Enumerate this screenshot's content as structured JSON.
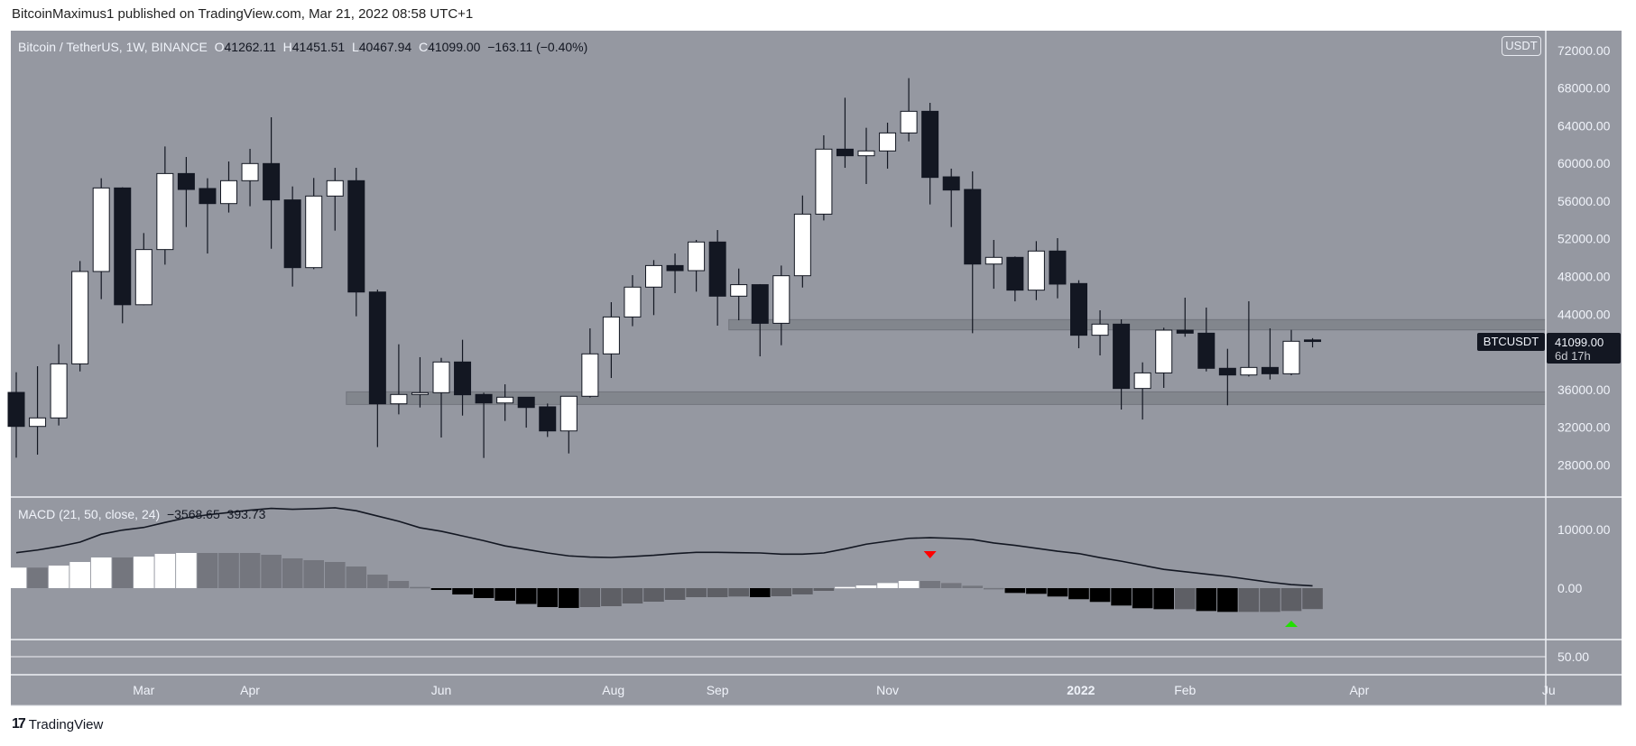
{
  "header": {
    "published": "BitcoinMaximus1 published on TradingView.com, Mar 21, 2022 08:58 UTC+1"
  },
  "legend": {
    "symbol": "Bitcoin / TetherUS, 1W, BINANCE",
    "o_label": "O",
    "o": "41262.11",
    "h_label": "H",
    "h": "41451.51",
    "l_label": "L",
    "l": "40467.94",
    "c_label": "C",
    "c": "41099.00",
    "change": "−163.11 (−0.40%)"
  },
  "price_axis": {
    "currency": "USDT",
    "ticks": [
      {
        "value": 72000,
        "label": "72000.00"
      },
      {
        "value": 68000,
        "label": "68000.00"
      },
      {
        "value": 64000,
        "label": "64000.00"
      },
      {
        "value": 60000,
        "label": "60000.00"
      },
      {
        "value": 56000,
        "label": "56000.00"
      },
      {
        "value": 52000,
        "label": "52000.00"
      },
      {
        "value": 48000,
        "label": "48000.00"
      },
      {
        "value": 44000,
        "label": "44000.00"
      },
      {
        "value": 36000,
        "label": "36000.00"
      },
      {
        "value": 32000,
        "label": "32000.00"
      },
      {
        "value": 28000,
        "label": "28000.00"
      }
    ]
  },
  "last_price": {
    "symbol": "BTCUSDT",
    "price": "41099.00",
    "countdown": "6d 17h"
  },
  "macd": {
    "label": "MACD (21, 50, close, 24)",
    "hist_value": "−3568.65",
    "line_value": "393.73",
    "axis_ticks": [
      {
        "value": 10000,
        "label": "10000.00"
      },
      {
        "value": 0,
        "label": "0.00"
      }
    ]
  },
  "lower_pane": {
    "axis_label": "50.00"
  },
  "time_axis": [
    {
      "label": "Mar",
      "bar": 6.0,
      "bold": false
    },
    {
      "label": "Apr",
      "bar": 11.0,
      "bold": false
    },
    {
      "label": "Jun",
      "bar": 20.0,
      "bold": false
    },
    {
      "label": "Aug",
      "bar": 28.1,
      "bold": false
    },
    {
      "label": "Sep",
      "bar": 33.0,
      "bold": false
    },
    {
      "label": "Nov",
      "bar": 41.0,
      "bold": false
    },
    {
      "label": "2022",
      "bar": 50.1,
      "bold": true
    },
    {
      "label": "Feb",
      "bar": 55.0,
      "bold": false
    },
    {
      "label": "Apr",
      "bar": 63.2,
      "bold": false
    },
    {
      "label": "Ju",
      "bar": 71.8,
      "bold": false
    }
  ],
  "footer": {
    "brand": "TradingView",
    "logo": "17"
  },
  "colors": {
    "background": "#9598a1",
    "up_body": "#ffffff",
    "down_body": "#131722",
    "zone": "#7f828a",
    "hist_pos_up": "#ffffff",
    "hist_pos_down": "#74767e",
    "hist_neg_down": "#000000",
    "hist_neg_up": "#5e5f65",
    "sell_marker": "#ff0000",
    "buy_marker": "#22e000"
  },
  "chart_data": {
    "type": "candlestick",
    "title": "Bitcoin / TetherUS, 1W, BINANCE",
    "ylim": [
      24570,
      74100
    ],
    "ohlc": [
      [
        35690,
        37830,
        28760,
        32080
      ],
      [
        32080,
        38470,
        29080,
        32980
      ],
      [
        32980,
        40800,
        32180,
        38720
      ],
      [
        38720,
        49640,
        37920,
        48530
      ],
      [
        48530,
        58430,
        45590,
        57400
      ],
      [
        57400,
        57470,
        43030,
        45000
      ],
      [
        45000,
        52610,
        44950,
        50860
      ],
      [
        50860,
        61810,
        49260,
        58930
      ],
      [
        58930,
        60690,
        53250,
        57240
      ],
      [
        57340,
        58430,
        50440,
        55740
      ],
      [
        55740,
        60210,
        54790,
        58170
      ],
      [
        58170,
        61550,
        55460,
        59990
      ],
      [
        59990,
        64910,
        50950,
        56130
      ],
      [
        56130,
        57560,
        46930,
        48940
      ],
      [
        48940,
        58460,
        48780,
        56540
      ],
      [
        56540,
        59540,
        52870,
        58170
      ],
      [
        58170,
        59540,
        43770,
        46350
      ],
      [
        46350,
        46610,
        29880,
        34480
      ],
      [
        34480,
        40800,
        33360,
        35470
      ],
      [
        35470,
        39430,
        34090,
        35660
      ],
      [
        35660,
        39360,
        30900,
        38920
      ],
      [
        38920,
        41280,
        33230,
        35440
      ],
      [
        35470,
        35660,
        28730,
        34570
      ],
      [
        34570,
        36550,
        32660,
        35180
      ],
      [
        35180,
        35210,
        31950,
        34090
      ],
      [
        34160,
        34510,
        30960,
        31600
      ],
      [
        31600,
        35300,
        29210,
        35280
      ],
      [
        35280,
        42490,
        35150,
        39780
      ],
      [
        39780,
        45270,
        37220,
        43700
      ],
      [
        43700,
        48140,
        42720,
        46870
      ],
      [
        46870,
        49740,
        43900,
        49160
      ],
      [
        49160,
        50440,
        46230,
        48620
      ],
      [
        48620,
        51880,
        46390,
        51660
      ],
      [
        51660,
        52930,
        42780,
        45910
      ],
      [
        45910,
        48840,
        43350,
        47130
      ],
      [
        47130,
        47190,
        39520,
        43030
      ],
      [
        43030,
        49160,
        40700,
        48080
      ],
      [
        48080,
        56600,
        46830,
        54620
      ],
      [
        54620,
        62990,
        53950,
        61520
      ],
      [
        61520,
        66980,
        59540,
        60820
      ],
      [
        60820,
        63790,
        57820,
        61330
      ],
      [
        61330,
        64330,
        59450,
        63240
      ],
      [
        63240,
        69060,
        62350,
        65540
      ],
      [
        65540,
        66440,
        55650,
        58520
      ],
      [
        58580,
        59450,
        53250,
        57180
      ],
      [
        57240,
        59160,
        41980,
        49320
      ],
      [
        49320,
        51880,
        46700,
        50030
      ],
      [
        50030,
        50120,
        45360,
        46550
      ],
      [
        46550,
        51750,
        45490,
        50700
      ],
      [
        50700,
        52070,
        45680,
        47190
      ],
      [
        47250,
        47600,
        40380,
        41760
      ],
      [
        41760,
        44410,
        39620,
        42940
      ],
      [
        42940,
        43450,
        33870,
        36110
      ],
      [
        36110,
        38880,
        32810,
        37760
      ],
      [
        37760,
        42560,
        36170,
        42300
      ],
      [
        42300,
        45750,
        41600,
        41980
      ],
      [
        41980,
        44700,
        37920,
        38250
      ],
      [
        38250,
        40320,
        34320,
        37540
      ],
      [
        37540,
        45370,
        37380,
        38340
      ],
      [
        38340,
        42490,
        37060,
        37670
      ],
      [
        37670,
        42330,
        37510,
        41120
      ],
      [
        41262,
        41451,
        40467,
        41099
      ]
    ],
    "zones": [
      {
        "name": "support",
        "low": 34410,
        "high": 35750,
        "from_bar": 16.0
      },
      {
        "name": "resistance",
        "low": 42330,
        "high": 43420,
        "from_bar": 34.0
      }
    ],
    "macd": {
      "ylim": [
        -8770,
        15380
      ],
      "histogram": [
        3500,
        3500,
        3850,
        4460,
        5230,
        5230,
        5380,
        5850,
        6000,
        6000,
        6000,
        6000,
        5690,
        5080,
        4770,
        4460,
        3690,
        2310,
        1230,
        200,
        -310,
        -1080,
        -1690,
        -2150,
        -2700,
        -3230,
        -3380,
        -3230,
        -3080,
        -2620,
        -2310,
        -2000,
        -1540,
        -1540,
        -1430,
        -1540,
        -1380,
        -1070,
        -460,
        200,
        460,
        870,
        1230,
        1230,
        870,
        410,
        20,
        -820,
        -970,
        -1430,
        -1890,
        -2350,
        -2970,
        -3430,
        -3590,
        -3590,
        -3900,
        -4050,
        -4050,
        -4050,
        -3900,
        -3570
      ],
      "line": [
        6050,
        6500,
        7100,
        7850,
        9200,
        9900,
        10350,
        11200,
        12000,
        12500,
        12900,
        13300,
        13600,
        13450,
        13550,
        13700,
        13200,
        12300,
        11400,
        10300,
        9700,
        8900,
        8100,
        7200,
        6600,
        6000,
        5500,
        5300,
        5230,
        5400,
        5600,
        5900,
        6100,
        6100,
        6050,
        6000,
        5800,
        5800,
        6000,
        6700,
        7500,
        8000,
        8500,
        8600,
        8500,
        8300,
        7700,
        7300,
        6800,
        6300,
        5900,
        5200,
        4600,
        3900,
        3200,
        2800,
        2400,
        2000,
        1500,
        1000,
        600,
        394
      ],
      "markers": [
        {
          "type": "sell",
          "bar": 43,
          "shape": "triangle-down"
        },
        {
          "type": "buy",
          "bar": 60,
          "shape": "triangle-up"
        }
      ]
    }
  }
}
